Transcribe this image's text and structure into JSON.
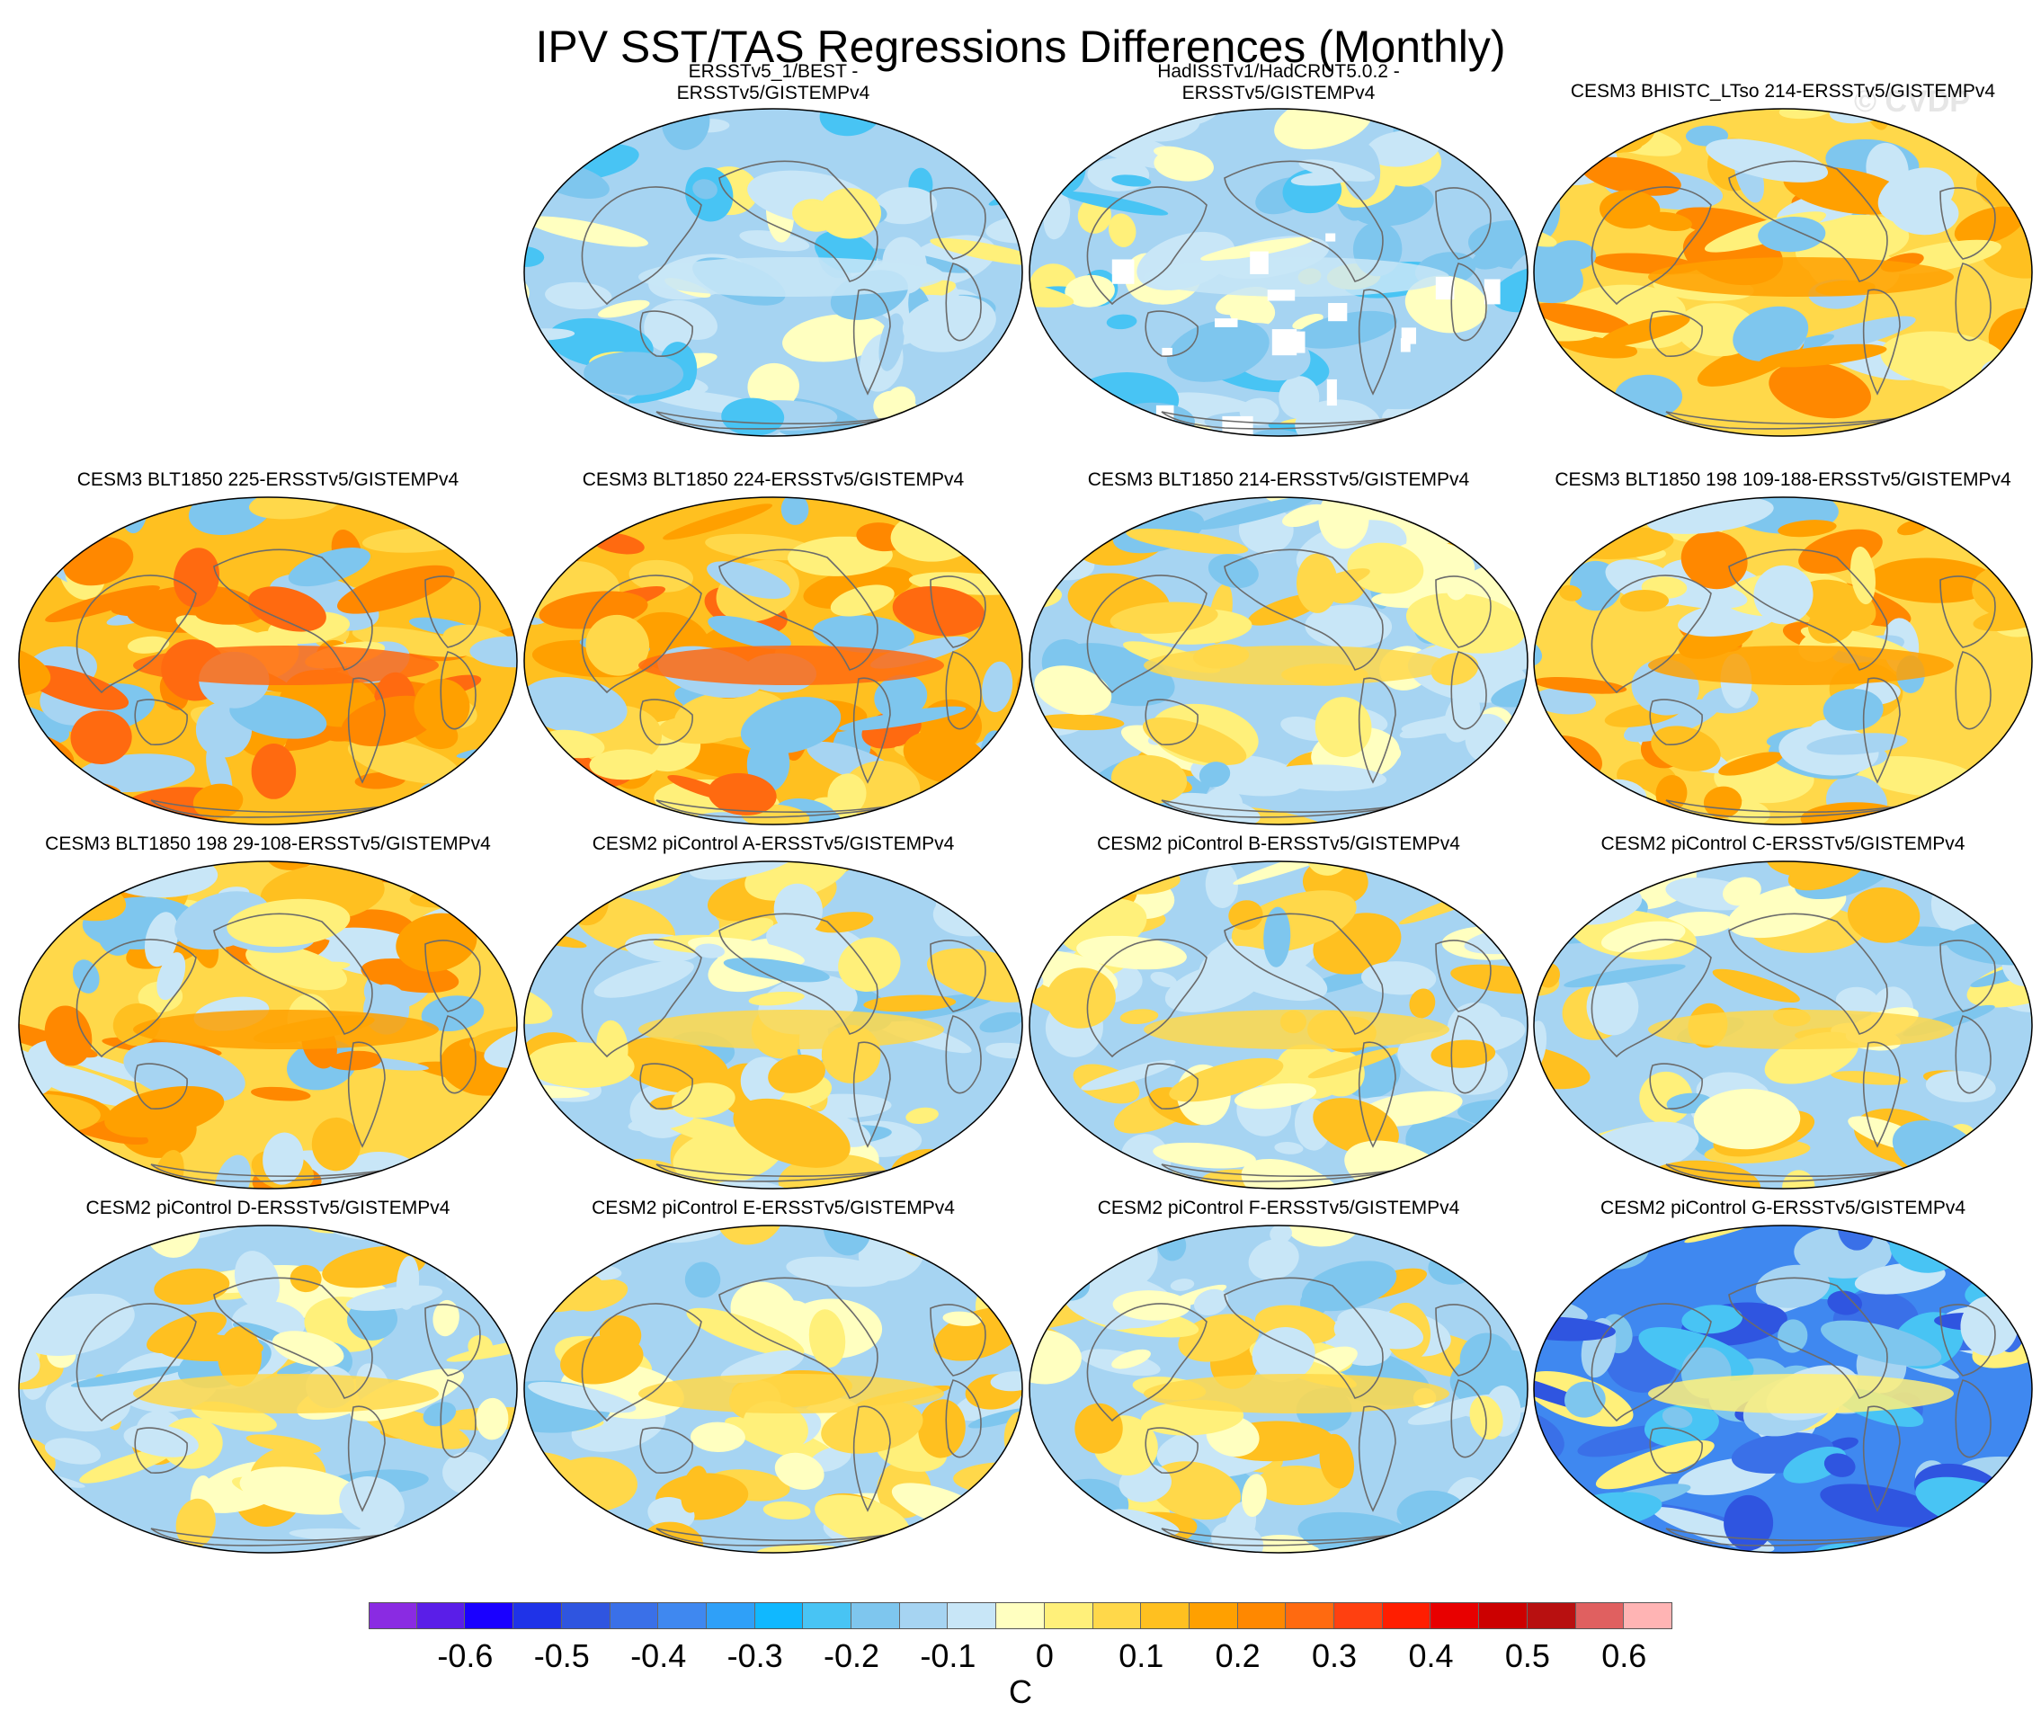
{
  "title": "IPV SST/TAS Regressions Differences (Monthly)",
  "watermark": "© CVDP",
  "colorbar": {
    "unit": "C",
    "colors": [
      "#8a2be2",
      "#5a1ee8",
      "#1a00ff",
      "#1f33e8",
      "#2f55e0",
      "#3a70e8",
      "#3f88f0",
      "#2fa0f8",
      "#10b8ff",
      "#48c4f4",
      "#7ec6ee",
      "#a6d4f2",
      "#c8e6f7",
      "#ffffc0",
      "#fff07a",
      "#ffd84a",
      "#ffc020",
      "#ffa000",
      "#ff8800",
      "#ff6a10",
      "#ff4010",
      "#ff1e00",
      "#e80000",
      "#cc0000",
      "#b81010",
      "#e06060",
      "#ffb4b4"
    ],
    "tick_labels": [
      "-0.6",
      "-0.5",
      "-0.4",
      "-0.3",
      "-0.2",
      "-0.1",
      "0",
      "0.1",
      "0.2",
      "0.3",
      "0.4",
      "0.5",
      "0.6"
    ]
  },
  "panels": [
    {
      "title": [
        "ERSSTv5_1/BEST -",
        "ERSSTv5/GISTEMPv4"
      ],
      "palette": "neg-light",
      "missing": false
    },
    {
      "title": [
        "HadISSTv1/HadCRUT5.0.2 -",
        "ERSSTv5/GISTEMPv4"
      ],
      "palette": "neg-light",
      "missing": true
    },
    {
      "title": [
        "CESM3 BHISTC_LTso 214-ERSSTv5/GISTEMPv4"
      ],
      "palette": "pos-mid",
      "missing": false
    },
    {
      "title": [
        "CESM3 BLT1850 225-ERSSTv5/GISTEMPv4"
      ],
      "palette": "pos-strong",
      "missing": false
    },
    {
      "title": [
        "CESM3 BLT1850 224-ERSSTv5/GISTEMPv4"
      ],
      "palette": "pos-strong",
      "missing": false
    },
    {
      "title": [
        "CESM3 BLT1850 214-ERSSTv5/GISTEMPv4"
      ],
      "palette": "mixed",
      "missing": false
    },
    {
      "title": [
        "CESM3 BLT1850 198 109-188-ERSSTv5/GISTEMPv4"
      ],
      "palette": "pos-mid",
      "missing": false
    },
    {
      "title": [
        "CESM3 BLT1850 198 29-108-ERSSTv5/GISTEMPv4"
      ],
      "palette": "pos-mid",
      "missing": false
    },
    {
      "title": [
        "CESM2 piControl A-ERSSTv5/GISTEMPv4"
      ],
      "palette": "mixed",
      "missing": false
    },
    {
      "title": [
        "CESM2 piControl B-ERSSTv5/GISTEMPv4"
      ],
      "palette": "mixed",
      "missing": false
    },
    {
      "title": [
        "CESM2 piControl C-ERSSTv5/GISTEMPv4"
      ],
      "palette": "mixed",
      "missing": false
    },
    {
      "title": [
        "CESM2 piControl D-ERSSTv5/GISTEMPv4"
      ],
      "palette": "mixed",
      "missing": false
    },
    {
      "title": [
        "CESM2 piControl E-ERSSTv5/GISTEMPv4"
      ],
      "palette": "mixed",
      "missing": false
    },
    {
      "title": [
        "CESM2 piControl F-ERSSTv5/GISTEMPv4"
      ],
      "palette": "mixed",
      "missing": false
    },
    {
      "title": [
        "CESM2 piControl G-ERSSTv5/GISTEMPv4"
      ],
      "palette": "neg-strong",
      "missing": false
    }
  ]
}
